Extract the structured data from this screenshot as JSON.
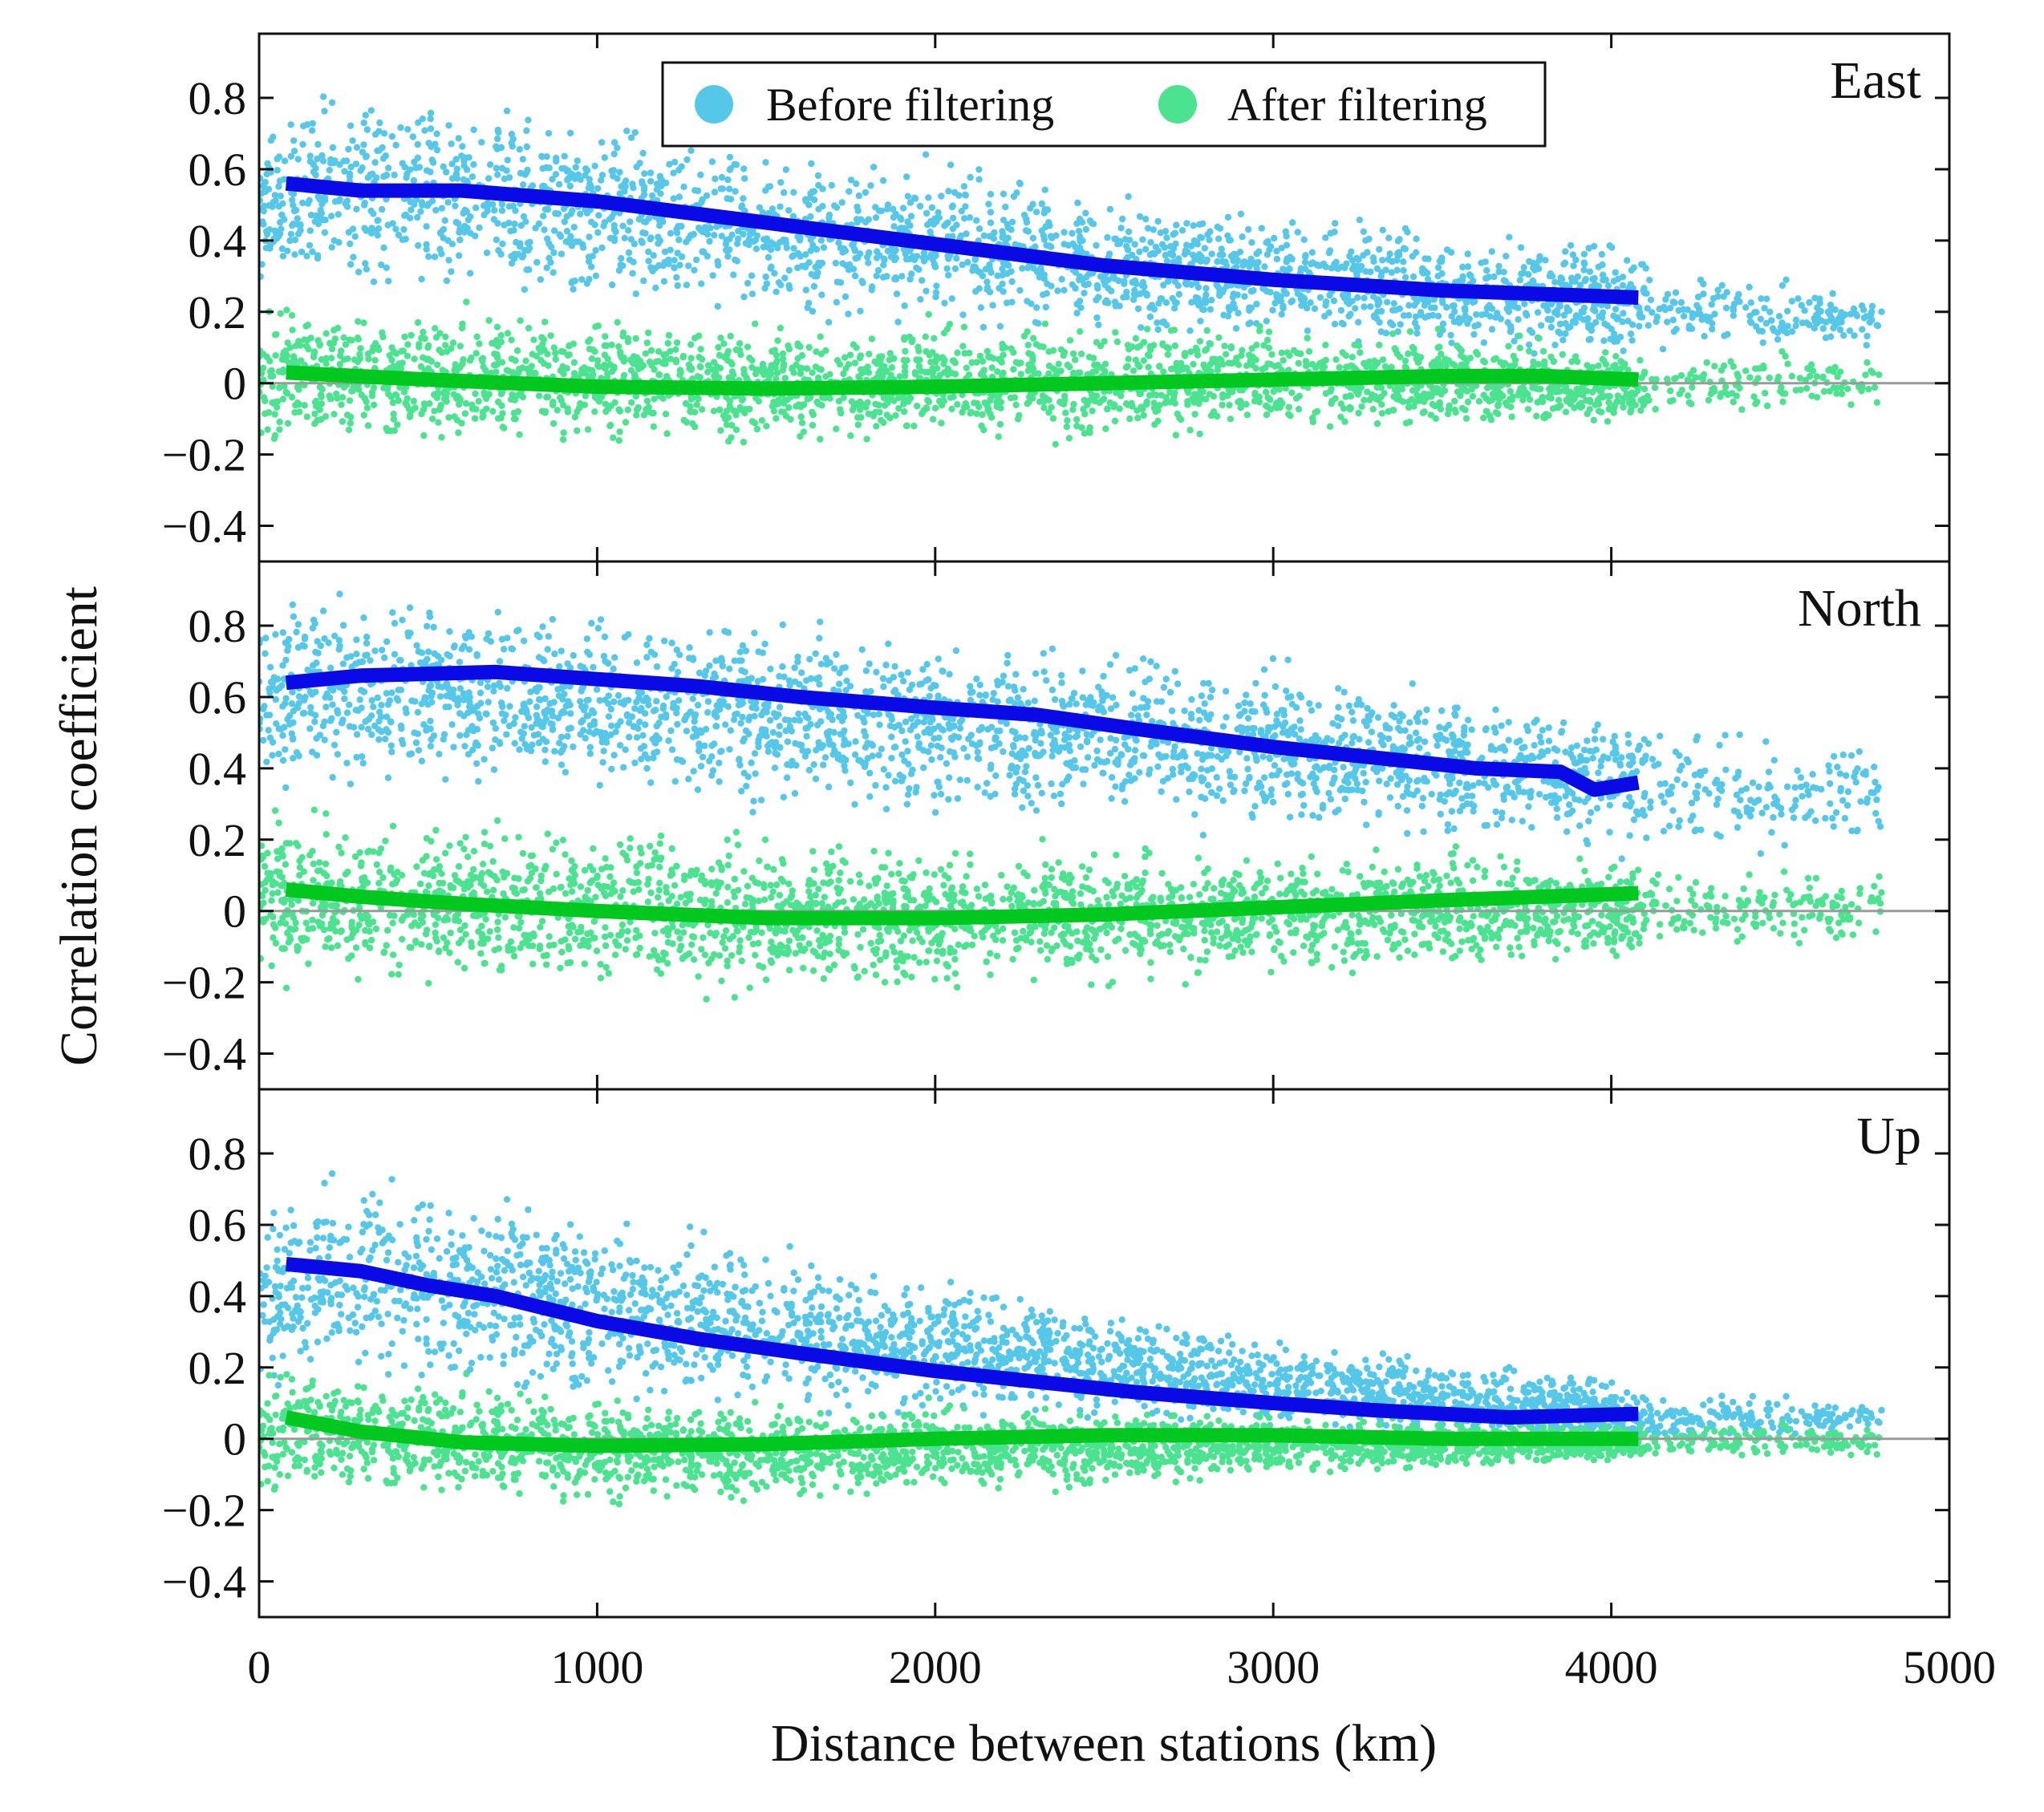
{
  "chart_data": {
    "type": "scatter",
    "xlabel": "Distance between stations (km)",
    "ylabel": "Correlation coefficient",
    "xlim": [
      0,
      5000
    ],
    "ylim": [
      -0.5,
      0.98
    ],
    "x_ticks": [
      0,
      1000,
      2000,
      3000,
      4000,
      5000
    ],
    "x_tick_labels": [
      "0",
      "1000",
      "2000",
      "3000",
      "4000",
      "5000"
    ],
    "y_ticks": [
      0.8,
      0.6,
      0.4,
      0.2,
      0,
      -0.2,
      -0.4
    ],
    "y_tick_labels": [
      "0.8",
      "0.6",
      "0.4",
      "0.2",
      "0",
      "−0.2",
      "−0.4"
    ],
    "legend": {
      "location": "top-center",
      "entries": [
        {
          "label": "Before filtering",
          "color": "#55c8ea"
        },
        {
          "label": "After filtering",
          "color": "#4be38f"
        }
      ]
    },
    "colors": {
      "before_scatter": "#55c8ea",
      "after_scatter": "#4be38f",
      "before_trend": "#0a0ae6",
      "after_trend": "#00c81e",
      "zero_line": "#9a9a9a"
    },
    "panels": [
      {
        "label": "East",
        "before_trend": {
          "x": [
            80,
            300,
            600,
            1000,
            1500,
            2000,
            2500,
            3000,
            3500,
            4080
          ],
          "y": [
            0.56,
            0.54,
            0.54,
            0.51,
            0.45,
            0.39,
            0.33,
            0.29,
            0.26,
            0.24
          ]
        },
        "after_trend": {
          "x": [
            80,
            500,
            1000,
            1500,
            2000,
            2500,
            3000,
            3500,
            3800,
            4080
          ],
          "y": [
            0.03,
            0.01,
            -0.01,
            -0.015,
            -0.01,
            0.0,
            0.01,
            0.02,
            0.02,
            0.01
          ]
        },
        "before_scatter_band": {
          "x": [
            0,
            500,
            1000,
            1500,
            2000,
            2500,
            3000,
            3500,
            4000,
            4100,
            4800
          ],
          "upper": [
            0.82,
            0.86,
            0.78,
            0.7,
            0.66,
            0.58,
            0.52,
            0.46,
            0.42,
            0.4,
            0.25
          ],
          "lower": [
            0.2,
            0.2,
            0.18,
            0.15,
            0.13,
            0.1,
            0.08,
            0.06,
            0.05,
            0.04,
            0.1
          ]
        },
        "after_scatter_band": {
          "x": [
            0,
            500,
            1000,
            1500,
            2000,
            2500,
            3000,
            3500,
            4000,
            4100,
            4800
          ],
          "upper": [
            0.28,
            0.24,
            0.22,
            0.2,
            0.2,
            0.2,
            0.18,
            0.16,
            0.14,
            0.12,
            0.1
          ],
          "lower": [
            -0.22,
            -0.22,
            -0.2,
            -0.2,
            -0.2,
            -0.18,
            -0.16,
            -0.15,
            -0.15,
            -0.15,
            -0.08
          ]
        }
      },
      {
        "label": "North",
        "before_trend": {
          "x": [
            80,
            300,
            700,
            1000,
            1300,
            1600,
            2000,
            2300,
            2600,
            3000,
            3300,
            3600,
            3850,
            3950,
            4080
          ],
          "y": [
            0.64,
            0.66,
            0.67,
            0.65,
            0.63,
            0.6,
            0.57,
            0.55,
            0.51,
            0.46,
            0.43,
            0.4,
            0.39,
            0.34,
            0.36
          ]
        },
        "after_trend": {
          "x": [
            80,
            300,
            600,
            1000,
            1500,
            2000,
            2500,
            3000,
            3500,
            4080
          ],
          "y": [
            0.06,
            0.04,
            0.02,
            0.0,
            -0.02,
            -0.02,
            -0.01,
            0.01,
            0.03,
            0.05
          ]
        },
        "before_scatter_band": {
          "x": [
            0,
            500,
            1000,
            1500,
            2000,
            2500,
            3000,
            3500,
            4000,
            4100,
            4800
          ],
          "upper": [
            0.92,
            0.92,
            0.88,
            0.86,
            0.82,
            0.78,
            0.74,
            0.68,
            0.62,
            0.58,
            0.52
          ],
          "lower": [
            0.3,
            0.3,
            0.28,
            0.25,
            0.22,
            0.2,
            0.18,
            0.15,
            0.12,
            0.1,
            0.15
          ]
        },
        "after_scatter_band": {
          "x": [
            0,
            500,
            1000,
            1500,
            2000,
            2500,
            3000,
            3500,
            4000,
            4100,
            4800
          ],
          "upper": [
            0.32,
            0.3,
            0.28,
            0.25,
            0.22,
            0.22,
            0.2,
            0.2,
            0.18,
            0.15,
            0.12
          ],
          "lower": [
            -0.24,
            -0.26,
            -0.26,
            -0.26,
            -0.26,
            -0.24,
            -0.22,
            -0.2,
            -0.18,
            -0.15,
            -0.1
          ]
        }
      },
      {
        "label": "Up",
        "before_trend": {
          "x": [
            80,
            300,
            500,
            700,
            1000,
            1300,
            1600,
            2000,
            2300,
            2600,
            3000,
            3300,
            3500,
            3700,
            4080
          ],
          "y": [
            0.49,
            0.47,
            0.43,
            0.4,
            0.33,
            0.28,
            0.24,
            0.19,
            0.16,
            0.13,
            0.1,
            0.08,
            0.07,
            0.06,
            0.07
          ]
        },
        "after_trend": {
          "x": [
            80,
            300,
            600,
            1000,
            1500,
            2000,
            2500,
            3000,
            3500,
            4080
          ],
          "y": [
            0.06,
            0.02,
            -0.01,
            -0.02,
            -0.015,
            0.0,
            0.01,
            0.01,
            0.0,
            0.0
          ]
        },
        "before_scatter_band": {
          "x": [
            0,
            200,
            500,
            1000,
            1500,
            2000,
            2500,
            3000,
            3500,
            4000,
            4100,
            4800
          ],
          "upper": [
            0.7,
            0.8,
            0.78,
            0.68,
            0.58,
            0.48,
            0.4,
            0.32,
            0.25,
            0.18,
            0.15,
            0.12
          ],
          "lower": [
            0.1,
            0.1,
            0.08,
            0.06,
            0.05,
            0.04,
            0.03,
            0.0,
            -0.02,
            -0.03,
            -0.04,
            0.0
          ]
        },
        "after_scatter_band": {
          "x": [
            0,
            500,
            1000,
            1500,
            2000,
            2500,
            3000,
            3500,
            4000,
            4100,
            4800
          ],
          "upper": [
            0.25,
            0.2,
            0.15,
            0.13,
            0.12,
            0.1,
            0.08,
            0.07,
            0.06,
            0.06,
            0.05
          ],
          "lower": [
            -0.2,
            -0.2,
            -0.22,
            -0.2,
            -0.18,
            -0.15,
            -0.12,
            -0.1,
            -0.08,
            -0.08,
            -0.06
          ]
        }
      }
    ]
  }
}
